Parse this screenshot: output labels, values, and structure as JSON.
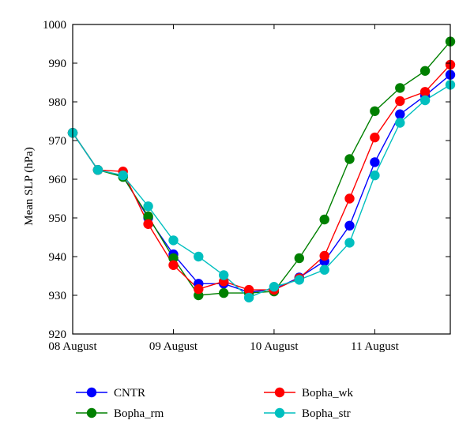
{
  "chart_data": {
    "type": "line",
    "ylabel": "Mean SLP (hPa)",
    "xlabel": "",
    "ylim": [
      920,
      1000
    ],
    "yticks": [
      920,
      930,
      940,
      950,
      960,
      970,
      980,
      990,
      1000
    ],
    "xlim": [
      0,
      30
    ],
    "xticks": [
      {
        "x": 0,
        "label": "08 August"
      },
      {
        "x": 8,
        "label": "09 August"
      },
      {
        "x": 16,
        "label": "10 August"
      },
      {
        "x": 24,
        "label": "11 August"
      }
    ],
    "x_unit": "3-hourly steps",
    "grid": false,
    "legend_position": "bottom",
    "series": [
      {
        "name": "CNTR",
        "color": "#0000ff",
        "x": [
          0,
          2,
          4,
          6,
          8,
          10,
          12,
          14,
          16,
          18,
          20,
          22,
          24,
          26,
          28,
          30
        ],
        "values": [
          972.0,
          962.4,
          960.8,
          950.0,
          940.6,
          933.0,
          933.0,
          930.8,
          931.6,
          934.6,
          938.8,
          948.0,
          964.4,
          976.8,
          981.6,
          987.0
        ]
      },
      {
        "name": "Bopha_rm",
        "color": "#008000",
        "x": [
          0,
          2,
          4,
          6,
          8,
          10,
          12,
          14,
          16,
          18,
          20,
          22,
          24,
          26,
          28,
          30
        ],
        "values": [
          972.0,
          962.4,
          960.6,
          950.4,
          939.6,
          930.0,
          930.6,
          930.6,
          931.0,
          939.6,
          949.6,
          965.2,
          977.6,
          983.6,
          988.0,
          995.6
        ]
      },
      {
        "name": "Bopha_wk",
        "color": "#ff0000",
        "x": [
          0,
          2,
          4,
          6,
          8,
          10,
          12,
          14,
          16,
          18,
          20,
          22,
          24,
          26,
          28,
          30
        ],
        "values": [
          972.0,
          962.4,
          962.0,
          948.4,
          937.8,
          931.6,
          933.6,
          931.4,
          931.4,
          934.4,
          940.2,
          955.0,
          970.8,
          980.2,
          982.6,
          989.6
        ]
      },
      {
        "name": "Bopha_str",
        "color": "#00bfbf",
        "x": [
          0,
          2,
          4,
          6,
          8,
          10,
          12,
          14,
          16,
          18,
          20,
          22,
          24,
          26,
          28,
          30
        ],
        "values": [
          972.0,
          962.4,
          961.0,
          953.0,
          944.2,
          940.0,
          935.2,
          929.4,
          932.2,
          934.0,
          936.6,
          943.6,
          961.0,
          974.6,
          980.4,
          984.4
        ]
      }
    ]
  }
}
